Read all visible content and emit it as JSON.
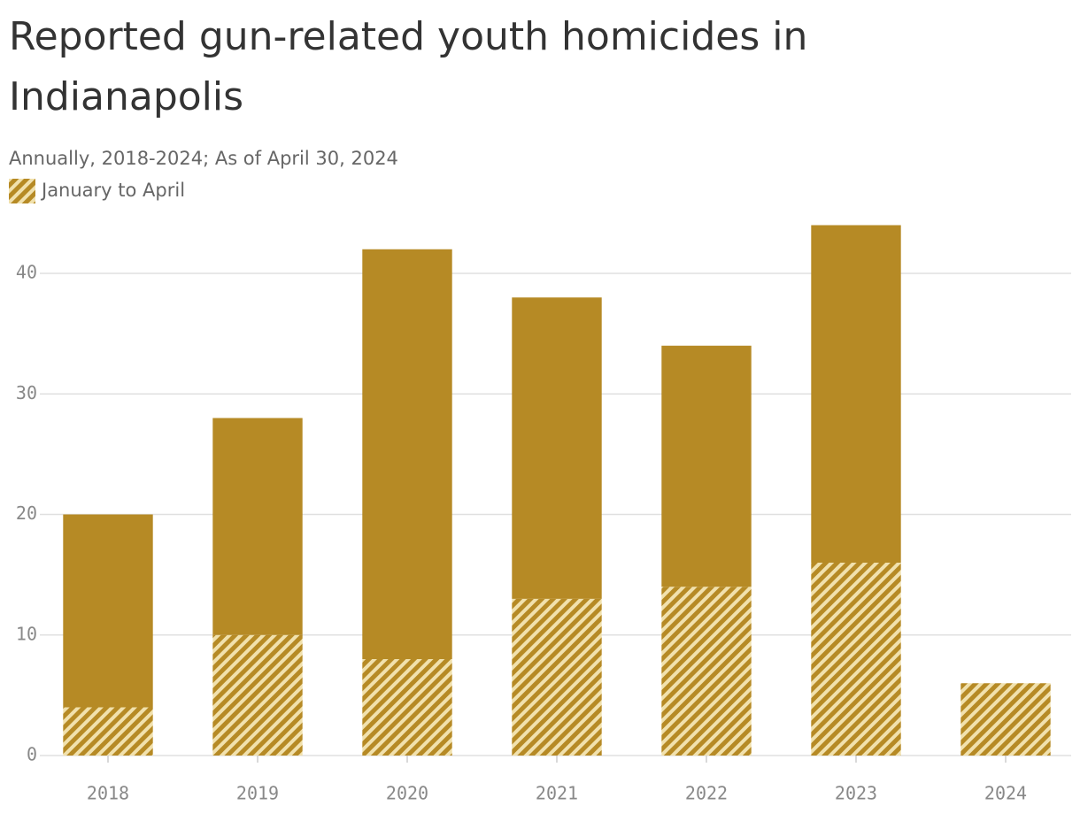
{
  "chart_data": {
    "type": "stacked-bar",
    "title": "Reported gun-related youth homicides in Indianapolis",
    "subtitle": "Annually, 2018-2024; As of April 30, 2024",
    "categories": [
      "2018",
      "2019",
      "2020",
      "2021",
      "2022",
      "2023",
      "2024"
    ],
    "series": [
      {
        "name": "January to April",
        "color": "#b68a25",
        "pattern": "hatch",
        "values": [
          4,
          10,
          8,
          13,
          14,
          16,
          6
        ]
      },
      {
        "color": "#b68a25",
        "values": [
          16,
          18,
          34,
          25,
          20,
          28,
          null
        ]
      }
    ],
    "ylim": [
      0,
      44
    ],
    "yticks": [
      0,
      10,
      20,
      30,
      40
    ],
    "grid": true,
    "legend": "top-left"
  }
}
